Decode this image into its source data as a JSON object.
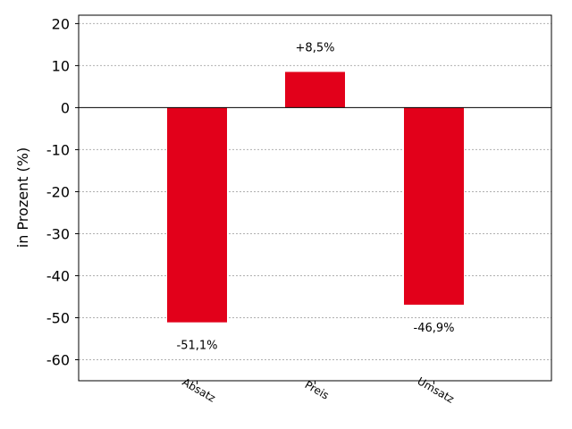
{
  "chart_data": {
    "type": "bar",
    "categories": [
      "Absatz",
      "Preis",
      "Umsatz"
    ],
    "values": [
      -51.1,
      8.5,
      -46.9
    ],
    "data_labels": [
      "-51,1%",
      "+8,5%",
      "-46,9%"
    ],
    "ylabel": "in Prozent (%)",
    "ylim": [
      -65,
      22
    ],
    "yticks": [
      20,
      10,
      0,
      -10,
      -20,
      -30,
      -40,
      -50,
      -60
    ],
    "ytick_labels": [
      "20",
      "10",
      "0",
      "-10",
      "-20",
      "-30",
      "-40",
      "-50",
      "-60"
    ],
    "grid": true,
    "bar_color": "#e2001a"
  }
}
